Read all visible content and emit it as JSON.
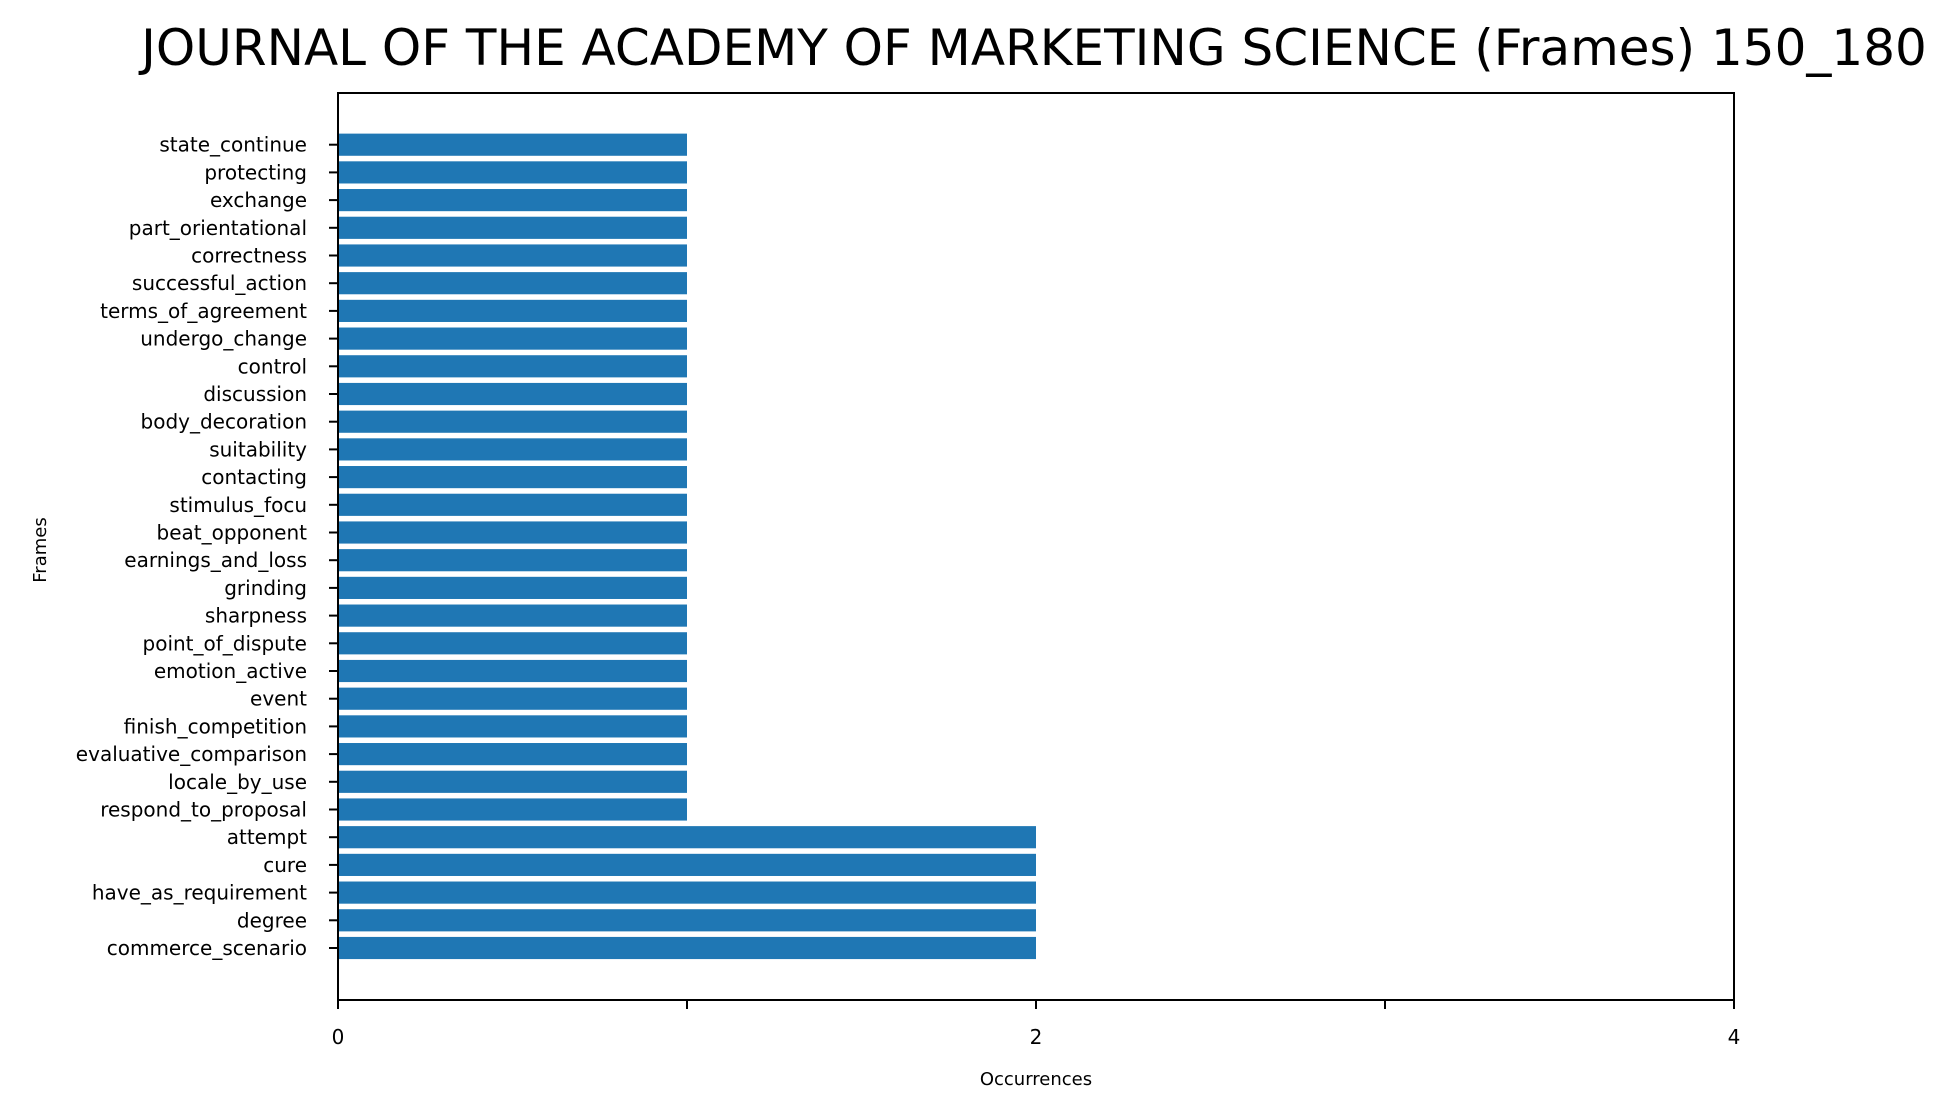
{
  "chart_data": {
    "type": "bar",
    "orientation": "horizontal",
    "title": "JOURNAL OF THE ACADEMY OF MARKETING SCIENCE (Frames) 150_180",
    "xlabel": "Occurrences",
    "ylabel": "Frames",
    "xlim": [
      0,
      4
    ],
    "x_ticks": [
      0,
      1,
      2,
      3,
      4
    ],
    "x_tick_labels": [
      "0",
      "",
      "2",
      "",
      "4"
    ],
    "bar_color": "#1f77b4",
    "grid": false,
    "categories": [
      "commerce_scenario",
      "degree",
      "have_as_requirement",
      "cure",
      "attempt",
      "respond_to_proposal",
      "locale_by_use",
      "evaluative_comparison",
      "finish_competition",
      "event",
      "emotion_active",
      "point_of_dispute",
      "sharpness",
      "grinding",
      "earnings_and_loss",
      "beat_opponent",
      "stimulus_focu",
      "contacting",
      "suitability",
      "body_decoration",
      "discussion",
      "control",
      "undergo_change",
      "terms_of_agreement",
      "successful_action",
      "correctness",
      "part_orientational",
      "exchange",
      "protecting",
      "state_continue"
    ],
    "values": [
      2,
      2,
      2,
      2,
      2,
      1,
      1,
      1,
      1,
      1,
      1,
      1,
      1,
      1,
      1,
      1,
      1,
      1,
      1,
      1,
      1,
      1,
      1,
      1,
      1,
      1,
      1,
      1,
      1,
      1
    ]
  }
}
